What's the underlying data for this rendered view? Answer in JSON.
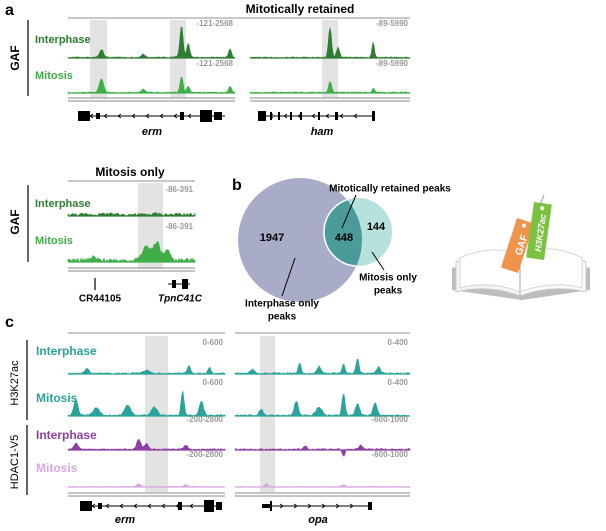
{
  "panel_a": {
    "letter": "a",
    "title": "Mitotically retained",
    "factor": "GAF",
    "tracks": [
      "Interphase",
      "Mitosis"
    ],
    "loci": [
      {
        "ranges": [
          "-121-2568",
          "-121-2568"
        ],
        "gene": "erm"
      },
      {
        "ranges": [
          "-89-5990",
          "-89-5990"
        ],
        "gene": "ham"
      }
    ]
  },
  "panel_a2": {
    "title": "Mitosis only",
    "factor": "GAF",
    "tracks": [
      "Interphase",
      "Mitosis"
    ],
    "ranges": [
      "-86-391",
      "-86-391"
    ],
    "genes": [
      "CR44105",
      "TpnC41C"
    ]
  },
  "panel_b": {
    "letter": "b",
    "counts": [
      "1947",
      "448",
      "144"
    ],
    "retained_label": "Mitotically retained peaks",
    "interphase_label": [
      "Interphase only",
      "peaks"
    ],
    "mitosis_label": [
      "Mitosis only",
      "peaks"
    ]
  },
  "book": {
    "tags": [
      "GAF",
      "H3K27ac"
    ]
  },
  "panel_c": {
    "letter": "c",
    "groups": [
      {
        "factor": "H3K27ac",
        "tracks": [
          "Interphase",
          "Mitosis"
        ]
      },
      {
        "factor": "HDAC1-V5",
        "tracks": [
          "Interphase",
          "Mitosis"
        ]
      }
    ],
    "loci": [
      {
        "gene": "erm",
        "ranges": [
          "0-600",
          "0-600",
          "-200-2800",
          "-200-2800"
        ]
      },
      {
        "gene": "opa",
        "ranges": [
          "0-400",
          "0-400",
          "-600-1000",
          "-600-1000"
        ]
      }
    ]
  }
}
